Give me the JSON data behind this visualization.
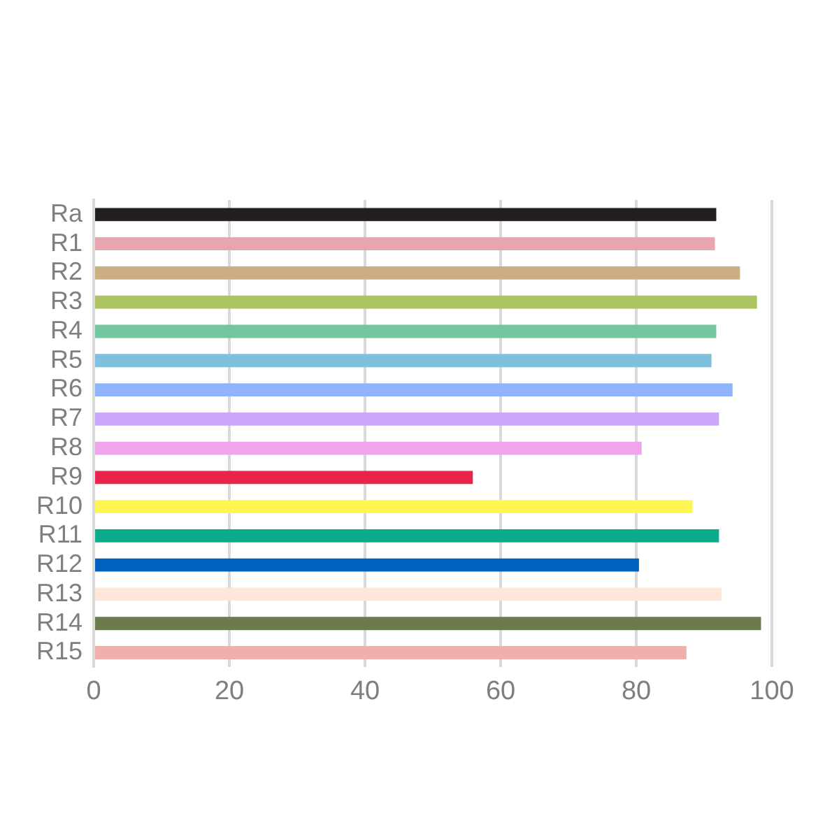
{
  "chart_data": {
    "type": "bar",
    "orientation": "horizontal",
    "categories": [
      "Ra",
      "R1",
      "R2",
      "R3",
      "R4",
      "R5",
      "R6",
      "R7",
      "R8",
      "R9",
      "R10",
      "R11",
      "R12",
      "R13",
      "R14",
      "R15"
    ],
    "values": [
      91.8,
      91.6,
      95.3,
      97.8,
      91.8,
      91.1,
      94.2,
      92.2,
      80.8,
      55.9,
      88.3,
      92.2,
      80.4,
      92.6,
      98.4,
      87.4
    ],
    "colors": [
      "#231f20",
      "#e8a5ae",
      "#cbaf83",
      "#abc45f",
      "#72c6a0",
      "#7fc0dc",
      "#8fb4fb",
      "#cba7fb",
      "#efa5ec",
      "#ea234c",
      "#fff553",
      "#0bac89",
      "#0060bf",
      "#fde6da",
      "#6b7b4c",
      "#efb0ad"
    ],
    "xlim": [
      0,
      100
    ],
    "xticks": [
      0,
      20,
      40,
      60,
      80,
      100
    ],
    "grid": "x",
    "legend": false
  }
}
